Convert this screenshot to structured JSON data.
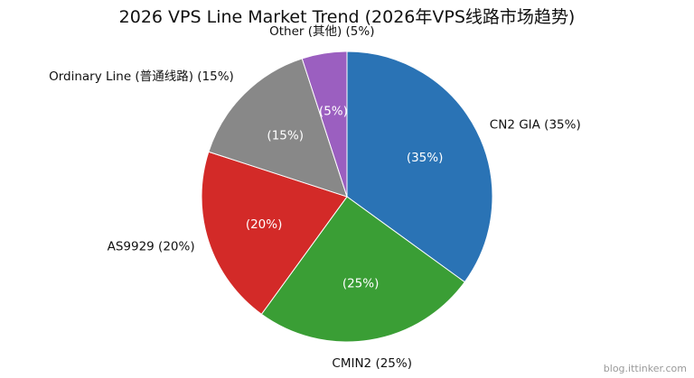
{
  "chart_data": {
    "type": "pie",
    "title": "2026 VPS Line Market Trend (2026年VPS线路市场趋势)",
    "slices": [
      {
        "label": "CN2 GIA (35%)",
        "value": 35,
        "inner_label": "(35%)",
        "color": "#2a73b5"
      },
      {
        "label": "CMIN2 (25%)",
        "value": 25,
        "inner_label": "(25%)",
        "color": "#3a9e35"
      },
      {
        "label": "AS9929 (20%)",
        "value": 20,
        "inner_label": "(20%)",
        "color": "#d32a28"
      },
      {
        "label": "Ordinary Line (普通线路) (15%)",
        "value": 15,
        "inner_label": "(15%)",
        "color": "#888888"
      },
      {
        "label": "Other (其他) (5%)",
        "value": 5,
        "inner_label": "(5%)",
        "color": "#9b5fc0"
      }
    ],
    "start_angle": "12 o'clock",
    "direction": "clockwise",
    "legend": "none"
  },
  "watermark": "blog.ittinker.com"
}
